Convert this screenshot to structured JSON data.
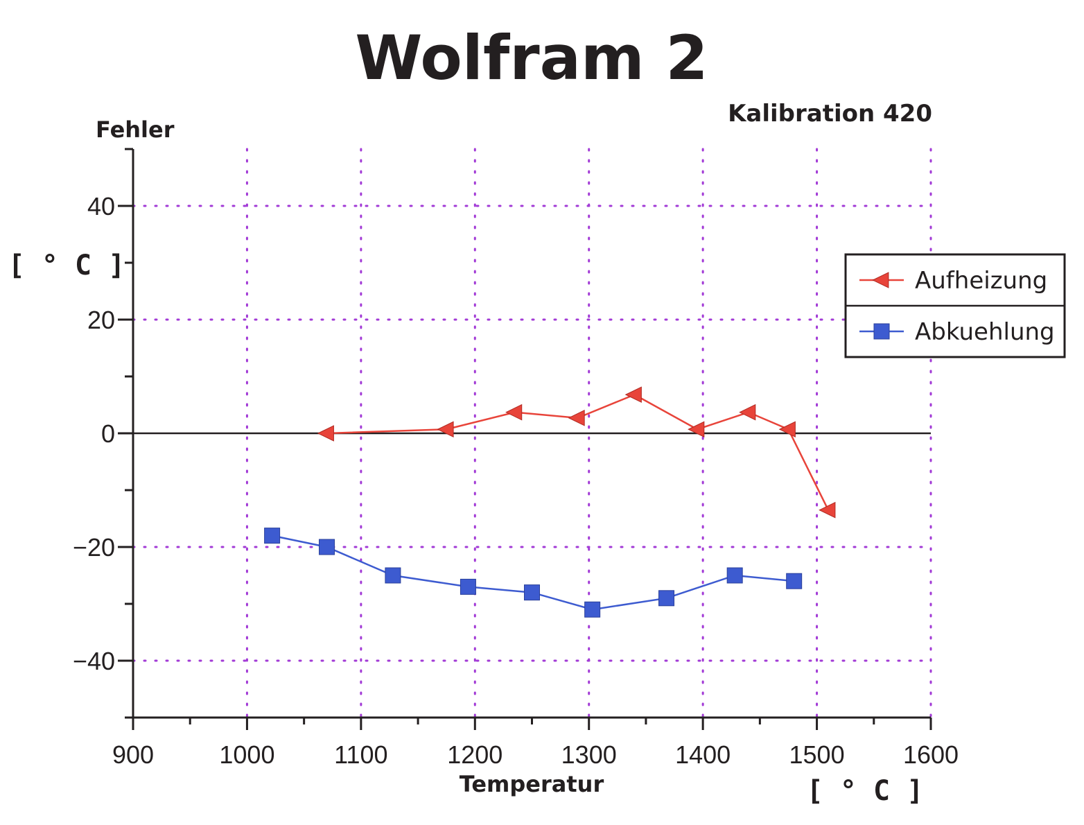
{
  "chart_data": {
    "type": "line",
    "title": "Wolfram 2",
    "subtitle": "Kalibration 420",
    "xlabel": "Temperatur",
    "xunit": "[ ° C ]",
    "ylabel": "Fehler",
    "yunit": "[ ° C ]",
    "xlim": [
      900,
      1600
    ],
    "ylim": [
      -50,
      50
    ],
    "x_ticks": [
      "900",
      "1000",
      "1100",
      "1200",
      "1300",
      "1400",
      "1500",
      "1600"
    ],
    "y_ticks": [
      "40",
      "20",
      "0",
      "−20",
      "−40"
    ],
    "grid": true,
    "legend_position": "right",
    "series": [
      {
        "name": "Aufheizung",
        "color": "#e8443a",
        "marker": "triangle-left",
        "x": [
          1070,
          1175,
          1235,
          1290,
          1340,
          1395,
          1440,
          1475,
          1510
        ],
        "y": [
          0,
          0.7,
          3.7,
          2.7,
          6.8,
          0.7,
          3.7,
          0.7,
          -13.5
        ]
      },
      {
        "name": "Abkuehlung",
        "color": "#3d5bd0",
        "marker": "square",
        "x": [
          1022,
          1070,
          1128,
          1194,
          1250,
          1303,
          1368,
          1428,
          1480
        ],
        "y": [
          -18,
          -20,
          -25,
          -27,
          -28,
          -31,
          -29,
          -25,
          -26
        ]
      }
    ]
  }
}
